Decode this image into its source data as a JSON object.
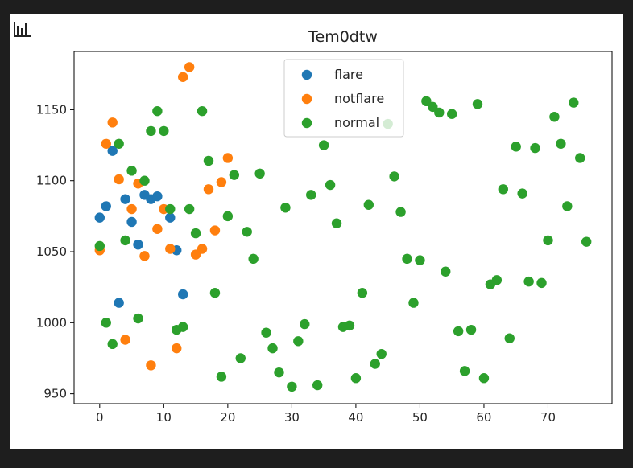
{
  "chart_data": {
    "type": "scatter",
    "title": "Tem0dtw",
    "xlabel": "",
    "ylabel": "",
    "xlim": [
      -4,
      80
    ],
    "ylim": [
      943,
      1191
    ],
    "x_ticks": [
      0,
      10,
      20,
      30,
      40,
      50,
      60,
      70
    ],
    "y_ticks": [
      950,
      1000,
      1050,
      1100,
      1150
    ],
    "grid": false,
    "legend_position": "top-center",
    "series": [
      {
        "name": "flare",
        "color": "#1f77b4",
        "points": [
          [
            0,
            1074
          ],
          [
            1,
            1082
          ],
          [
            2,
            1121
          ],
          [
            3,
            1014
          ],
          [
            4,
            1087
          ],
          [
            5,
            1071
          ],
          [
            6,
            1055
          ],
          [
            7,
            1090
          ],
          [
            8,
            1087
          ],
          [
            9,
            1089
          ],
          [
            11,
            1074
          ],
          [
            12,
            1051
          ],
          [
            13,
            1020
          ]
        ]
      },
      {
        "name": "notflare",
        "color": "#ff7f0e",
        "points": [
          [
            0,
            1051
          ],
          [
            1,
            1126
          ],
          [
            2,
            1141
          ],
          [
            3,
            1101
          ],
          [
            4,
            988
          ],
          [
            5,
            1080
          ],
          [
            6,
            1098
          ],
          [
            7,
            1047
          ],
          [
            8,
            970
          ],
          [
            9,
            1066
          ],
          [
            10,
            1080
          ],
          [
            11,
            1052
          ],
          [
            12,
            982
          ],
          [
            13,
            1173
          ],
          [
            14,
            1180
          ],
          [
            15,
            1048
          ],
          [
            16,
            1052
          ],
          [
            17,
            1094
          ],
          [
            18,
            1065
          ],
          [
            19,
            1099
          ],
          [
            20,
            1116
          ]
        ]
      },
      {
        "name": "normal",
        "color": "#2ca02c",
        "points": [
          [
            0,
            1054
          ],
          [
            1,
            1000
          ],
          [
            2,
            985
          ],
          [
            3,
            1126
          ],
          [
            4,
            1058
          ],
          [
            5,
            1107
          ],
          [
            6,
            1003
          ],
          [
            7,
            1100
          ],
          [
            8,
            1135
          ],
          [
            9,
            1149
          ],
          [
            10,
            1135
          ],
          [
            11,
            1080
          ],
          [
            12,
            995
          ],
          [
            13,
            997
          ],
          [
            14,
            1080
          ],
          [
            15,
            1063
          ],
          [
            16,
            1149
          ],
          [
            17,
            1114
          ],
          [
            18,
            1021
          ],
          [
            19,
            962
          ],
          [
            20,
            1075
          ],
          [
            21,
            1104
          ],
          [
            22,
            975
          ],
          [
            23,
            1064
          ],
          [
            24,
            1045
          ],
          [
            25,
            1105
          ],
          [
            26,
            993
          ],
          [
            27,
            982
          ],
          [
            28,
            965
          ],
          [
            29,
            1081
          ],
          [
            30,
            955
          ],
          [
            31,
            987
          ],
          [
            32,
            999
          ],
          [
            33,
            1090
          ],
          [
            34,
            956
          ],
          [
            35,
            1125
          ],
          [
            36,
            1097
          ],
          [
            37,
            1070
          ],
          [
            38,
            997
          ],
          [
            39,
            998
          ],
          [
            40,
            961
          ],
          [
            41,
            1021
          ],
          [
            42,
            1083
          ],
          [
            43,
            971
          ],
          [
            44,
            978
          ],
          [
            45,
            1140
          ],
          [
            46,
            1103
          ],
          [
            47,
            1078
          ],
          [
            48,
            1045
          ],
          [
            49,
            1014
          ],
          [
            50,
            1044
          ],
          [
            51,
            1156
          ],
          [
            52,
            1152
          ],
          [
            53,
            1148
          ],
          [
            54,
            1036
          ],
          [
            55,
            1147
          ],
          [
            56,
            994
          ],
          [
            57,
            966
          ],
          [
            58,
            995
          ],
          [
            59,
            1154
          ],
          [
            60,
            961
          ],
          [
            61,
            1027
          ],
          [
            62,
            1030
          ],
          [
            63,
            1094
          ],
          [
            64,
            989
          ],
          [
            65,
            1124
          ],
          [
            66,
            1091
          ],
          [
            67,
            1029
          ],
          [
            68,
            1123
          ],
          [
            69,
            1028
          ],
          [
            70,
            1058
          ],
          [
            71,
            1145
          ],
          [
            72,
            1126
          ],
          [
            73,
            1082
          ],
          [
            74,
            1155
          ],
          [
            75,
            1116
          ],
          [
            76,
            1057
          ]
        ]
      }
    ]
  }
}
